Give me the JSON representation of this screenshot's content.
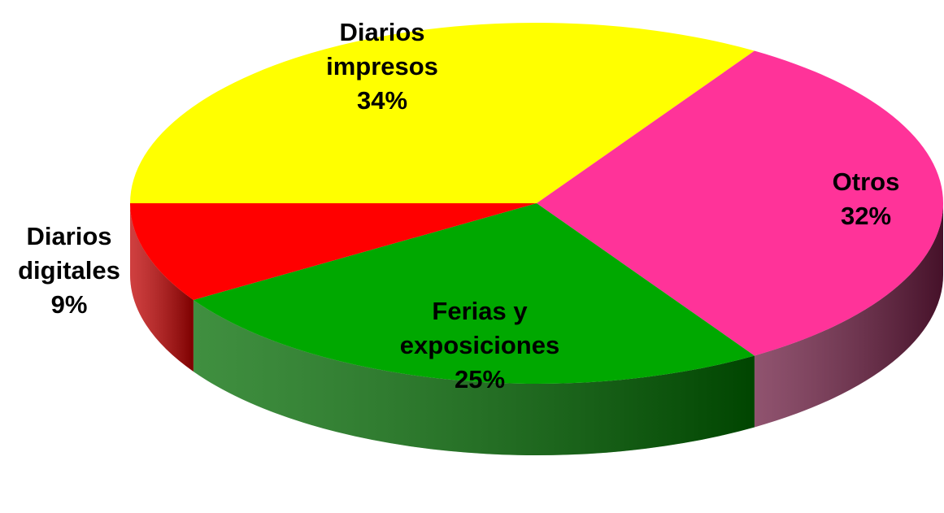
{
  "chart_data": {
    "type": "pie3d",
    "categories": [
      "Diarios impresos",
      "Otros",
      "Ferias y exposiciones",
      "Diarios digitales"
    ],
    "values": [
      34,
      32,
      25,
      9
    ],
    "value_labels": [
      "34%",
      "32%",
      "25%",
      "9%"
    ],
    "colors": [
      "#ffff00",
      "#ff3399",
      "#00a800",
      "#ff0000"
    ],
    "side_colors": [
      "#b3b300",
      "#6b1a3f",
      "#006a00",
      "#c00000"
    ]
  }
}
